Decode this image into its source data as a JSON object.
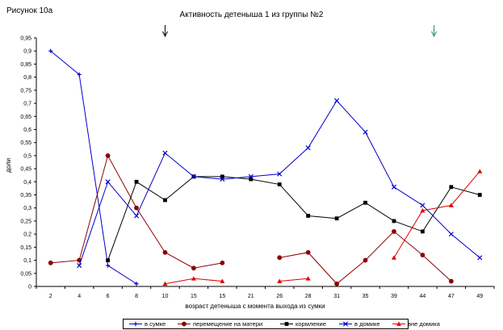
{
  "figure_label": "Рисунок 10а",
  "chart_data": {
    "type": "line",
    "title": "Активность детеныша 1 из группы №2",
    "xlabel": "возраст детеныша с момента выхода из сумки",
    "ylabel": "доли",
    "categories": [
      "2",
      "4",
      "6",
      "8",
      "10",
      "15",
      "15",
      "21",
      "26",
      "28",
      "31",
      "35",
      "39",
      "44",
      "47",
      "49"
    ],
    "ylim": [
      0,
      0.95
    ],
    "yticks": [
      "0",
      "0,05",
      "0,1",
      "0,15",
      "0,2",
      "0,25",
      "0,3",
      "0,35",
      "0,4",
      "0,45",
      "0,5",
      "0,55",
      "0,6",
      "0,65",
      "0,7",
      "0,75",
      "0,8",
      "0,85",
      "0,9",
      "0,95"
    ],
    "grid": false,
    "legend_position": "bottom",
    "series": [
      {
        "name": "в сумке",
        "color": "#0000c8",
        "marker": "plus",
        "values": [
          0.9,
          0.81,
          0.08,
          0.01,
          null,
          null,
          null,
          null,
          null,
          null,
          null,
          null,
          null,
          null,
          null,
          null
        ]
      },
      {
        "name": "перемещение на матери",
        "color": "#8b0000",
        "marker": "circle",
        "values": [
          0.09,
          0.1,
          0.5,
          0.3,
          0.13,
          0.07,
          0.09,
          null,
          0.11,
          0.13,
          0.01,
          0.1,
          0.21,
          0.12,
          0.02,
          null
        ]
      },
      {
        "name": "кормление",
        "color": "#000000",
        "marker": "square",
        "values": [
          null,
          null,
          0.1,
          0.4,
          0.33,
          0.42,
          0.42,
          0.41,
          0.39,
          0.27,
          0.26,
          0.32,
          0.25,
          0.21,
          0.38,
          0.35
        ]
      },
      {
        "name": "в домике",
        "color": "#0000c8",
        "marker": "cross",
        "values": [
          null,
          0.08,
          0.4,
          0.27,
          0.51,
          0.42,
          0.41,
          0.42,
          0.43,
          0.53,
          0.71,
          0.59,
          0.38,
          0.31,
          0.2,
          0.11
        ]
      },
      {
        "name": "вне домика",
        "color": "#e00000",
        "marker": "triangle",
        "values": [
          null,
          null,
          null,
          null,
          0.01,
          0.03,
          0.02,
          null,
          0.02,
          0.03,
          null,
          null,
          0.11,
          0.29,
          0.31,
          0.44
        ]
      }
    ],
    "annotations": [
      {
        "type": "arrow",
        "category_index": 4,
        "color": "#000000"
      },
      {
        "type": "arrow",
        "category_index": 13.4,
        "color": "#2e8b57"
      }
    ]
  }
}
